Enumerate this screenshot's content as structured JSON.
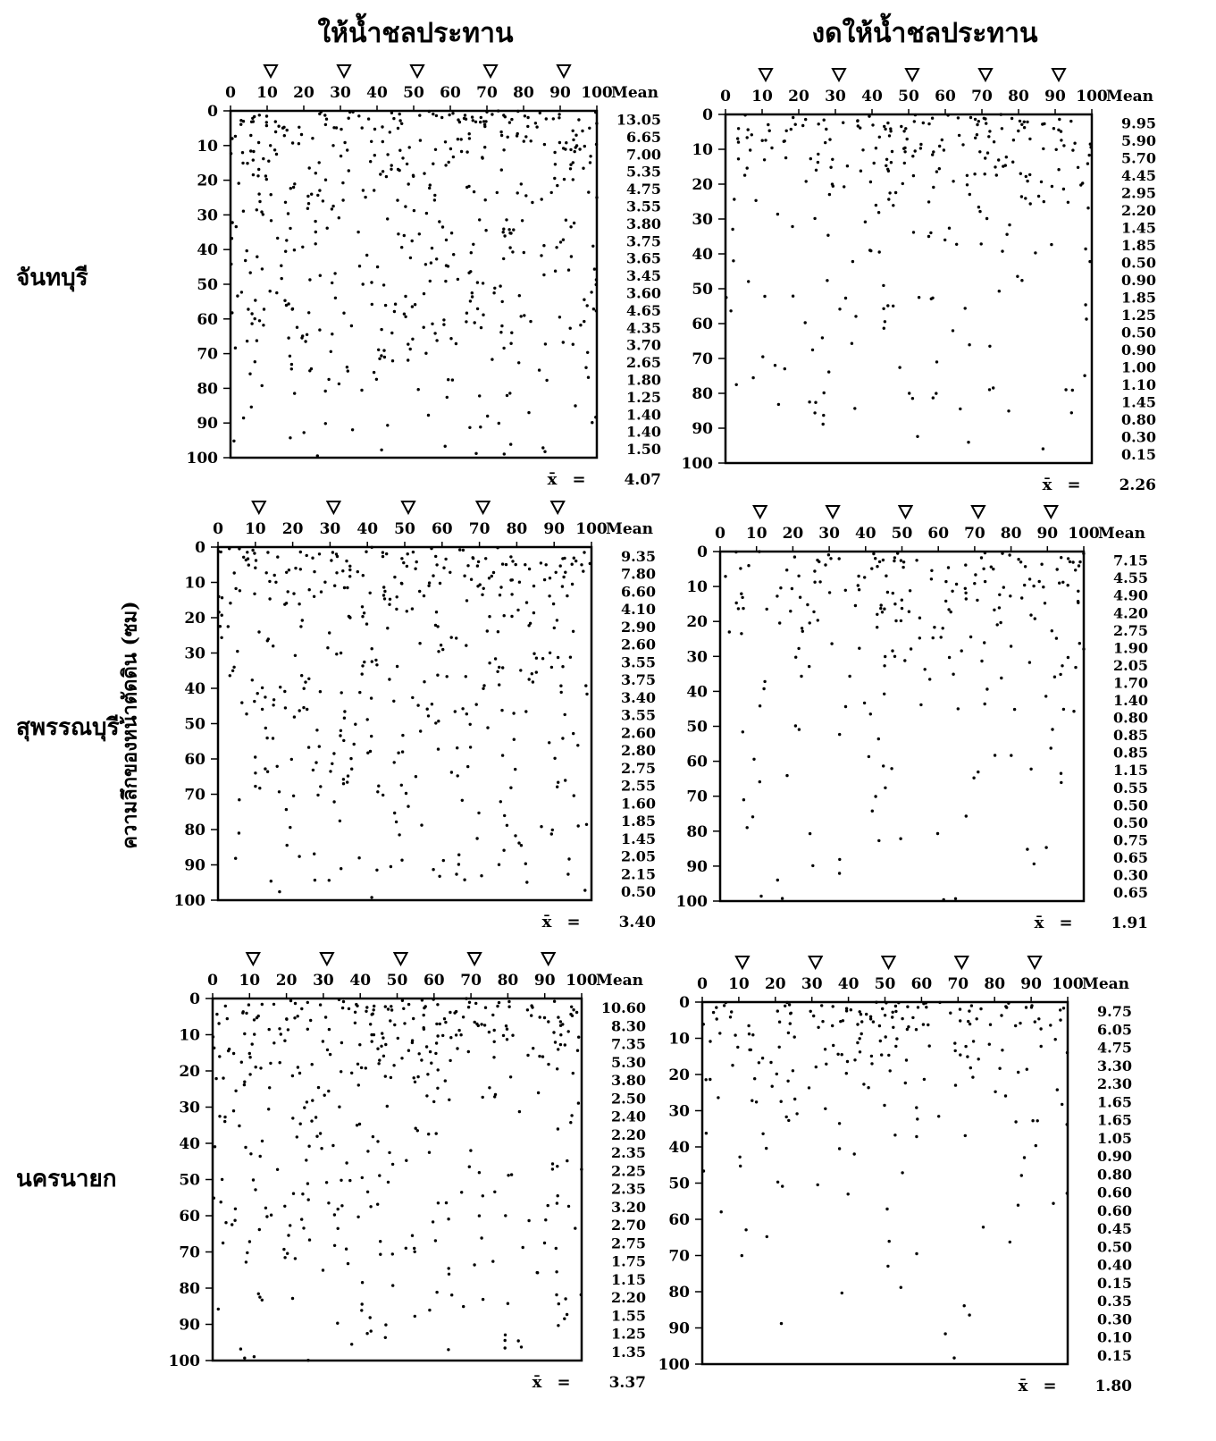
{
  "column_titles": [
    "ให้น้ำชลประทาน",
    "งดให้น้ำชลประทาน"
  ],
  "row_labels": [
    "จันทบุรี",
    "สุพรรณบุรี",
    "นครนายก"
  ],
  "ylabel": "ความลึกของหน้าตัดดิน (ซม)",
  "mean_header": "Mean",
  "xbar_symbol": "x̄",
  "equals_symbol": "=",
  "chart_data": [
    {
      "type": "scatter",
      "title": "",
      "row": "จันทบุรี",
      "column": "ให้น้ำชลประทาน",
      "x_ticks": [
        0,
        10,
        20,
        30,
        40,
        50,
        60,
        70,
        80,
        90,
        100
      ],
      "y_ticks": [
        0,
        10,
        20,
        30,
        40,
        50,
        60,
        70,
        80,
        90,
        100
      ],
      "xlim": [
        0,
        100
      ],
      "ylim": [
        0,
        100
      ],
      "y_inverted": true,
      "markers_x": [
        10,
        30,
        50,
        70,
        90
      ],
      "means": [
        "13.05",
        "6.65",
        "7.00",
        "5.35",
        "4.75",
        "3.55",
        "3.80",
        "3.75",
        "3.65",
        "3.45",
        "3.60",
        "4.65",
        "4.35",
        "3.70",
        "2.65",
        "1.80",
        "1.25",
        "1.40",
        "1.40",
        "1.50"
      ],
      "overall_mean": "4.07"
    },
    {
      "type": "scatter",
      "title": "",
      "row": "จันทบุรี",
      "column": "งดให้น้ำชลประทาน",
      "x_ticks": [
        0,
        10,
        20,
        30,
        40,
        50,
        60,
        70,
        80,
        90,
        100
      ],
      "y_ticks": [
        0,
        10,
        20,
        30,
        40,
        50,
        60,
        70,
        80,
        90,
        100
      ],
      "xlim": [
        0,
        100
      ],
      "ylim": [
        0,
        100
      ],
      "y_inverted": true,
      "markers_x": [
        10,
        30,
        50,
        70,
        90
      ],
      "means": [
        "9.95",
        "5.90",
        "5.70",
        "4.45",
        "2.95",
        "2.20",
        "1.45",
        "1.85",
        "0.50",
        "0.90",
        "1.85",
        "1.25",
        "0.50",
        "0.90",
        "1.00",
        "1.10",
        "1.45",
        "0.80",
        "0.30",
        "0.15"
      ],
      "overall_mean": "2.26"
    },
    {
      "type": "scatter",
      "title": "",
      "row": "สุพรรณบุรี",
      "column": "ให้น้ำชลประทาน",
      "x_ticks": [
        0,
        10,
        20,
        30,
        40,
        50,
        60,
        70,
        80,
        90,
        100
      ],
      "y_ticks": [
        0,
        10,
        20,
        30,
        40,
        50,
        60,
        70,
        80,
        90,
        100
      ],
      "xlim": [
        0,
        100
      ],
      "ylim": [
        0,
        100
      ],
      "y_inverted": true,
      "markers_x": [
        10,
        30,
        50,
        70,
        90
      ],
      "means": [
        "9.35",
        "7.80",
        "6.60",
        "4.10",
        "2.90",
        "2.60",
        "3.55",
        "3.75",
        "3.40",
        "3.55",
        "2.60",
        "2.80",
        "2.75",
        "2.55",
        "1.60",
        "1.85",
        "1.45",
        "2.05",
        "2.15",
        "0.50"
      ],
      "overall_mean": "3.40"
    },
    {
      "type": "scatter",
      "title": "",
      "row": "สุพรรณบุรี",
      "column": "งดให้น้ำชลประทาน",
      "x_ticks": [
        0,
        10,
        20,
        30,
        40,
        50,
        60,
        70,
        80,
        90,
        100
      ],
      "y_ticks": [
        0,
        10,
        20,
        30,
        40,
        50,
        60,
        70,
        80,
        90,
        100
      ],
      "xlim": [
        0,
        100
      ],
      "ylim": [
        0,
        100
      ],
      "y_inverted": true,
      "markers_x": [
        10,
        30,
        50,
        70,
        90
      ],
      "means": [
        "7.15",
        "4.55",
        "4.90",
        "4.20",
        "2.75",
        "1.90",
        "2.05",
        "1.70",
        "1.40",
        "0.80",
        "0.85",
        "0.85",
        "1.15",
        "0.55",
        "0.50",
        "0.50",
        "0.75",
        "0.65",
        "0.30",
        "0.65"
      ],
      "overall_mean": "1.91"
    },
    {
      "type": "scatter",
      "title": "",
      "row": "นครนายก",
      "column": "ให้น้ำชลประทาน",
      "x_ticks": [
        0,
        10,
        20,
        30,
        40,
        50,
        60,
        70,
        80,
        90,
        100
      ],
      "y_ticks": [
        0,
        10,
        20,
        30,
        40,
        50,
        60,
        70,
        80,
        90,
        100
      ],
      "xlim": [
        0,
        100
      ],
      "ylim": [
        0,
        100
      ],
      "y_inverted": true,
      "markers_x": [
        10,
        30,
        50,
        70,
        90
      ],
      "means": [
        "10.60",
        "8.30",
        "7.35",
        "5.30",
        "3.80",
        "2.50",
        "2.40",
        "2.20",
        "2.35",
        "2.25",
        "2.35",
        "3.20",
        "2.70",
        "2.75",
        "1.75",
        "1.15",
        "2.20",
        "1.55",
        "1.25",
        "1.35"
      ],
      "overall_mean": "3.37"
    },
    {
      "type": "scatter",
      "title": "",
      "row": "นครนายก",
      "column": "งดให้น้ำชลประทาน",
      "x_ticks": [
        0,
        10,
        20,
        30,
        40,
        50,
        60,
        70,
        80,
        90,
        100
      ],
      "y_ticks": [
        0,
        10,
        20,
        30,
        40,
        50,
        60,
        70,
        80,
        90,
        100
      ],
      "xlim": [
        0,
        100
      ],
      "ylim": [
        0,
        100
      ],
      "y_inverted": true,
      "markers_x": [
        10,
        30,
        50,
        70,
        90
      ],
      "means": [
        "9.75",
        "6.05",
        "4.75",
        "3.30",
        "2.30",
        "1.65",
        "1.65",
        "1.05",
        "0.90",
        "0.80",
        "0.60",
        "0.60",
        "0.45",
        "0.50",
        "0.40",
        "0.15",
        "0.35",
        "0.30",
        "0.10",
        "0.15"
      ],
      "overall_mean": "1.80"
    }
  ]
}
